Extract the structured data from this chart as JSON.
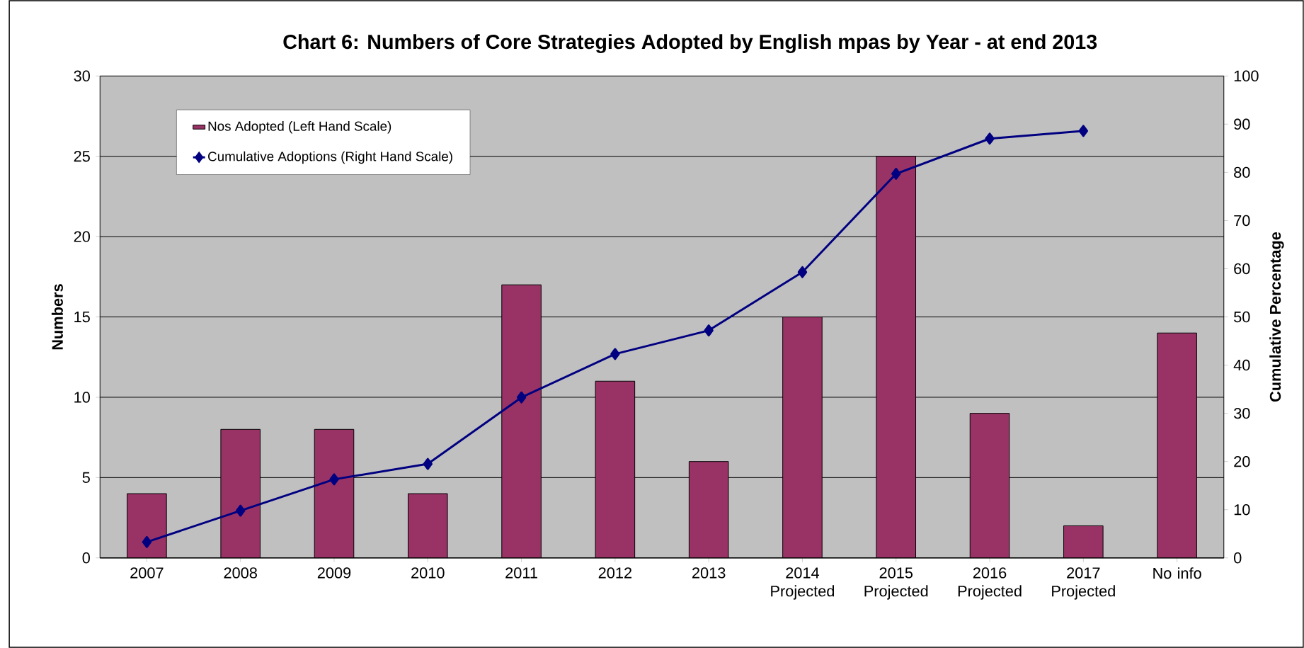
{
  "chart_data": {
    "type": "bar",
    "title": "Chart 6: Numbers of Core Strategies Adopted by English mpas by Year - at end  2013",
    "categories": [
      "2007",
      "2008",
      "2009",
      "2010",
      "2011",
      "2012",
      "2013",
      "2014 Projected",
      "2015 Projected",
      "2016 Projected",
      "2017 Projected",
      "No info"
    ],
    "series": [
      {
        "name": "Nos Adopted (Left Hand Scale)",
        "color": "#993366",
        "values": [
          4,
          8,
          8,
          4,
          17,
          11,
          6,
          15,
          25,
          9,
          2,
          14
        ]
      },
      {
        "name": "Cumulative Adoptions (Right Hand Scale)",
        "type": "line",
        "axis": "y2",
        "color": "#000080",
        "marker": "diamond",
        "values": [
          3.3,
          9.8,
          16.3,
          19.5,
          33.3,
          42.3,
          47.2,
          59.3,
          79.7,
          87.0,
          88.6,
          null
        ]
      }
    ],
    "ylabel": "Numbers",
    "y2label": "Cumulative Percentage",
    "ylim": [
      0,
      30
    ],
    "yticks": [
      0,
      5,
      10,
      15,
      20,
      25,
      30
    ],
    "y2lim": [
      0,
      100
    ],
    "y2ticks": [
      0,
      10,
      20,
      30,
      40,
      50,
      60,
      70,
      80,
      90,
      100
    ],
    "grid": "y",
    "legend": "top left"
  }
}
